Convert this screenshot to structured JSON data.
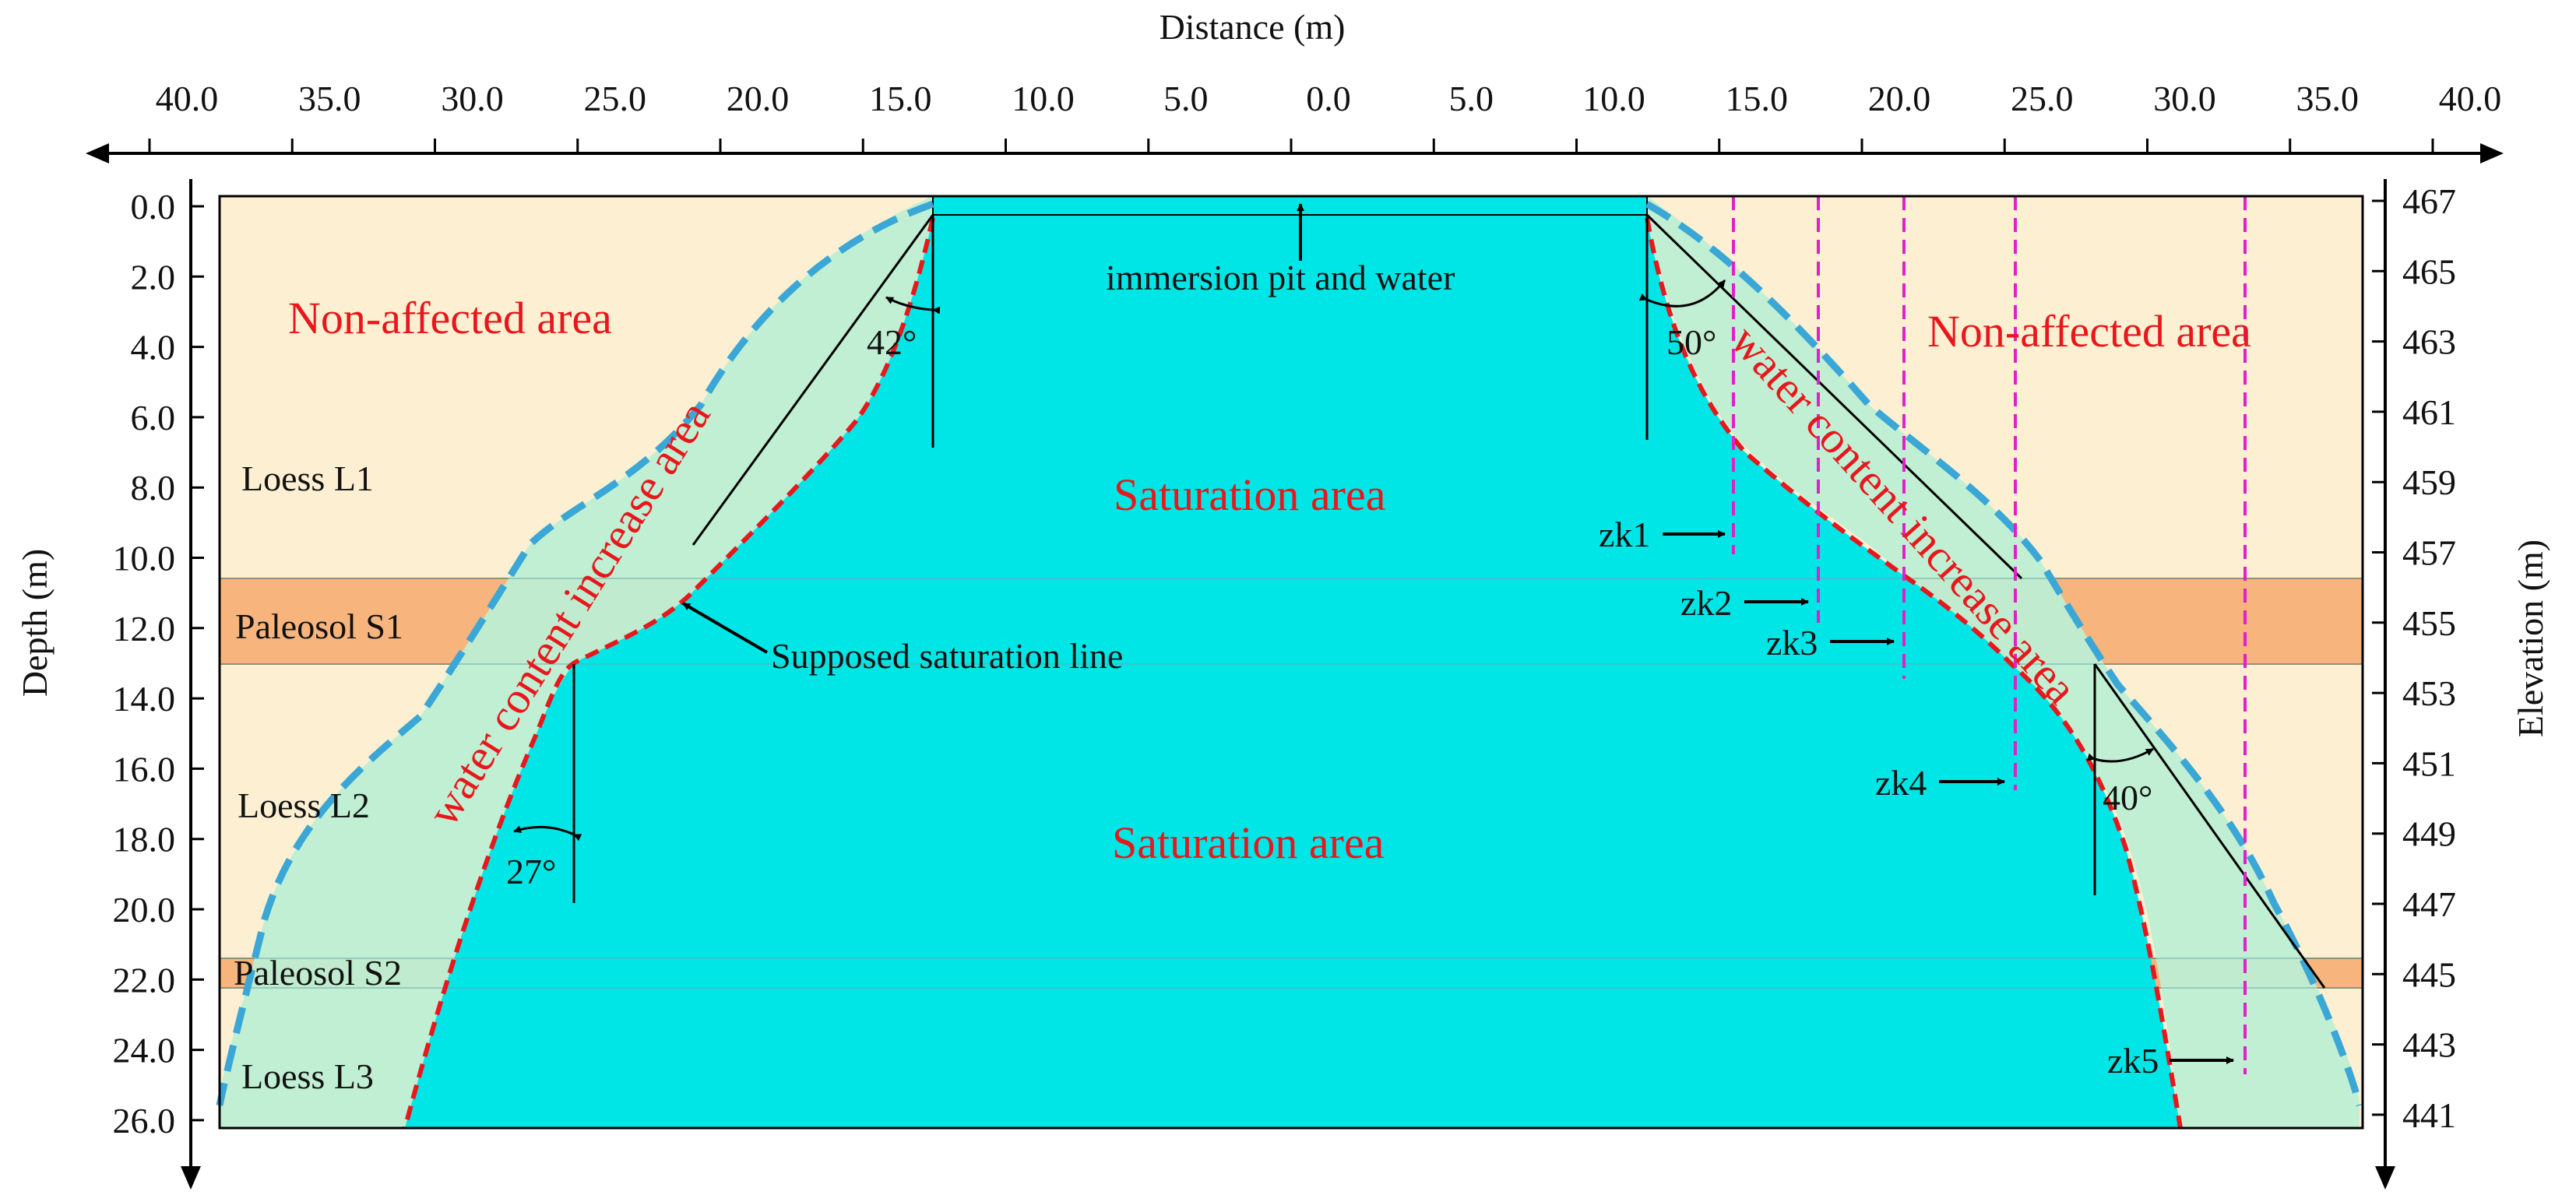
{
  "axes": {
    "top_title": "Distance (m)",
    "left_title": "Depth (m)",
    "right_title": "Elevation (m)",
    "top_ticks": [
      "40.0",
      "35.0",
      "30.0",
      "25.0",
      "20.0",
      "15.0",
      "10.0",
      "5.0",
      "0.0",
      "5.0",
      "10.0",
      "15.0",
      "20.0",
      "25.0",
      "30.0",
      "35.0",
      "40.0"
    ],
    "left_ticks": [
      "0.0",
      "2.0",
      "4.0",
      "6.0",
      "8.0",
      "10.0",
      "12.0",
      "14.0",
      "16.0",
      "18.0",
      "20.0",
      "22.0",
      "24.0",
      "26.0"
    ],
    "right_ticks": [
      "467",
      "465",
      "463",
      "461",
      "459",
      "457",
      "455",
      "453",
      "451",
      "449",
      "447",
      "445",
      "443",
      "441"
    ]
  },
  "zones": {
    "non_affected_left": "Non-affected area",
    "non_affected_right": "Non-affected area",
    "saturation_upper": "Saturation area",
    "saturation_lower": "Saturation area",
    "water_increase_left": "water content increase area",
    "water_increase_right": "water content increase area"
  },
  "layers": {
    "loess_l1": "Loess L1",
    "paleosol_s1": "Paleosol S1",
    "loess_l2": "Loess L2",
    "paleosol_s2": "Paleosol S2",
    "loess_l3": "Loess L3"
  },
  "annotations": {
    "pit": "immersion pit and water",
    "saturation_line": "Supposed saturation line"
  },
  "angles": {
    "a42": "42°",
    "a50": "50°",
    "a27": "27°",
    "a40": "40°"
  },
  "boreholes": [
    "zk1",
    "zk2",
    "zk3",
    "zk4",
    "zk5"
  ],
  "colors": {
    "soil": "#fdefd1",
    "paleosol": "#f7b57d",
    "saturation": "#00e6e6",
    "wet_zone": "#bdeed3",
    "boundary_dashed": "#3aa7d6",
    "saturation_line": "#e8171c",
    "borehole": "#e020c8"
  }
}
